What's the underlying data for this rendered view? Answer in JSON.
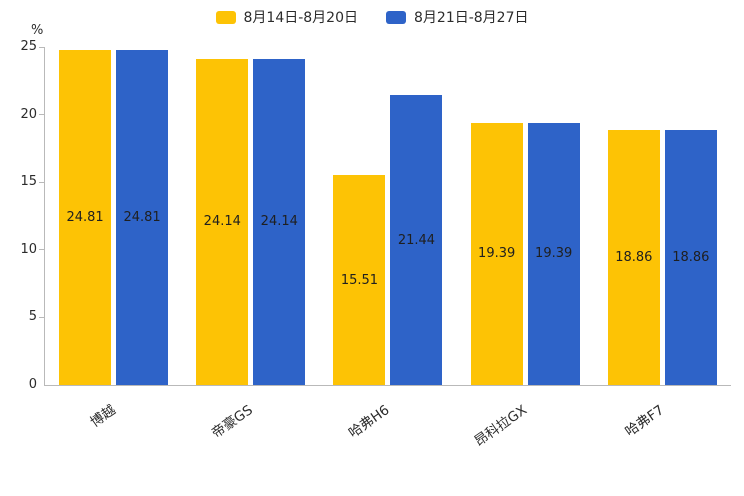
{
  "chart_data": {
    "type": "bar",
    "title": "",
    "xlabel": "",
    "ylabel": "%",
    "categories": [
      "博越",
      "帝豪GS",
      "哈弗H6",
      "昂科拉GX",
      "哈弗F7"
    ],
    "series": [
      {
        "name": "8月14日-8月20日",
        "color": "#FDC305",
        "values": [
          24.81,
          24.14,
          15.51,
          19.39,
          18.86
        ]
      },
      {
        "name": "8月21日-8月27日",
        "color": "#2E63C8",
        "values": [
          24.81,
          24.14,
          21.44,
          19.39,
          18.86
        ]
      }
    ],
    "ylim": [
      0,
      25
    ],
    "yticks": [
      0,
      5,
      10,
      15,
      20,
      25
    ],
    "grid": false,
    "legend_position": "top",
    "value_labels": true,
    "value_label_position": "inside-center",
    "axis_color": "#b9b9b9"
  }
}
